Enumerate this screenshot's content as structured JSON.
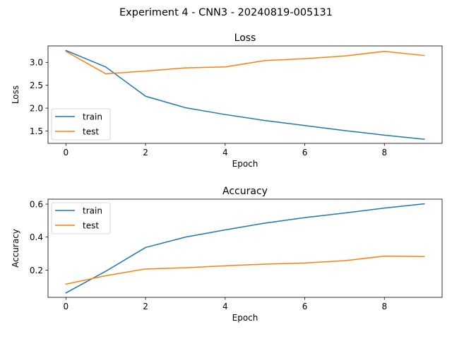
{
  "figure": {
    "suptitle": "Experiment 4 - CNN3 - 20240819-005131"
  },
  "chart_data": [
    {
      "type": "line",
      "title": "Loss",
      "xlabel": "Epoch",
      "ylabel": "Loss",
      "x": [
        0,
        1,
        2,
        3,
        4,
        5,
        6,
        7,
        8,
        9
      ],
      "xlim": [
        -0.45,
        9.45
      ],
      "ylim": [
        1.23,
        3.36
      ],
      "xticks": [
        0,
        2,
        4,
        6,
        8
      ],
      "yticks": [
        1.5,
        2.0,
        2.5,
        3.0
      ],
      "ytick_labels": [
        "1.5",
        "2.0",
        "2.5",
        "3.0"
      ],
      "grid": false,
      "legend": "lower-left",
      "series": [
        {
          "name": "train",
          "color": "#1f77b4",
          "values": [
            3.26,
            2.9,
            2.26,
            2.01,
            1.86,
            1.73,
            1.62,
            1.51,
            1.41,
            1.32
          ]
        },
        {
          "name": "test",
          "color": "#ff7f0e",
          "values": [
            3.24,
            2.75,
            2.81,
            2.88,
            2.9,
            3.04,
            3.08,
            3.14,
            3.24,
            3.15
          ]
        }
      ]
    },
    {
      "type": "line",
      "title": "Accuracy",
      "xlabel": "Epoch",
      "ylabel": "Accuracy",
      "x": [
        0,
        1,
        2,
        3,
        4,
        5,
        6,
        7,
        8,
        9
      ],
      "xlim": [
        -0.45,
        9.45
      ],
      "ylim": [
        0.035,
        0.63
      ],
      "xticks": [
        0,
        2,
        4,
        6,
        8
      ],
      "yticks": [
        0.2,
        0.4,
        0.6
      ],
      "ytick_labels": [
        "0.2",
        "0.4",
        "0.6"
      ],
      "grid": false,
      "legend": "upper-left",
      "series": [
        {
          "name": "train",
          "color": "#1f77b4",
          "values": [
            0.062,
            0.193,
            0.337,
            0.4,
            0.444,
            0.485,
            0.518,
            0.546,
            0.576,
            0.602
          ]
        },
        {
          "name": "test",
          "color": "#ff7f0e",
          "values": [
            0.115,
            0.166,
            0.207,
            0.214,
            0.226,
            0.236,
            0.243,
            0.257,
            0.285,
            0.282
          ]
        }
      ]
    }
  ]
}
